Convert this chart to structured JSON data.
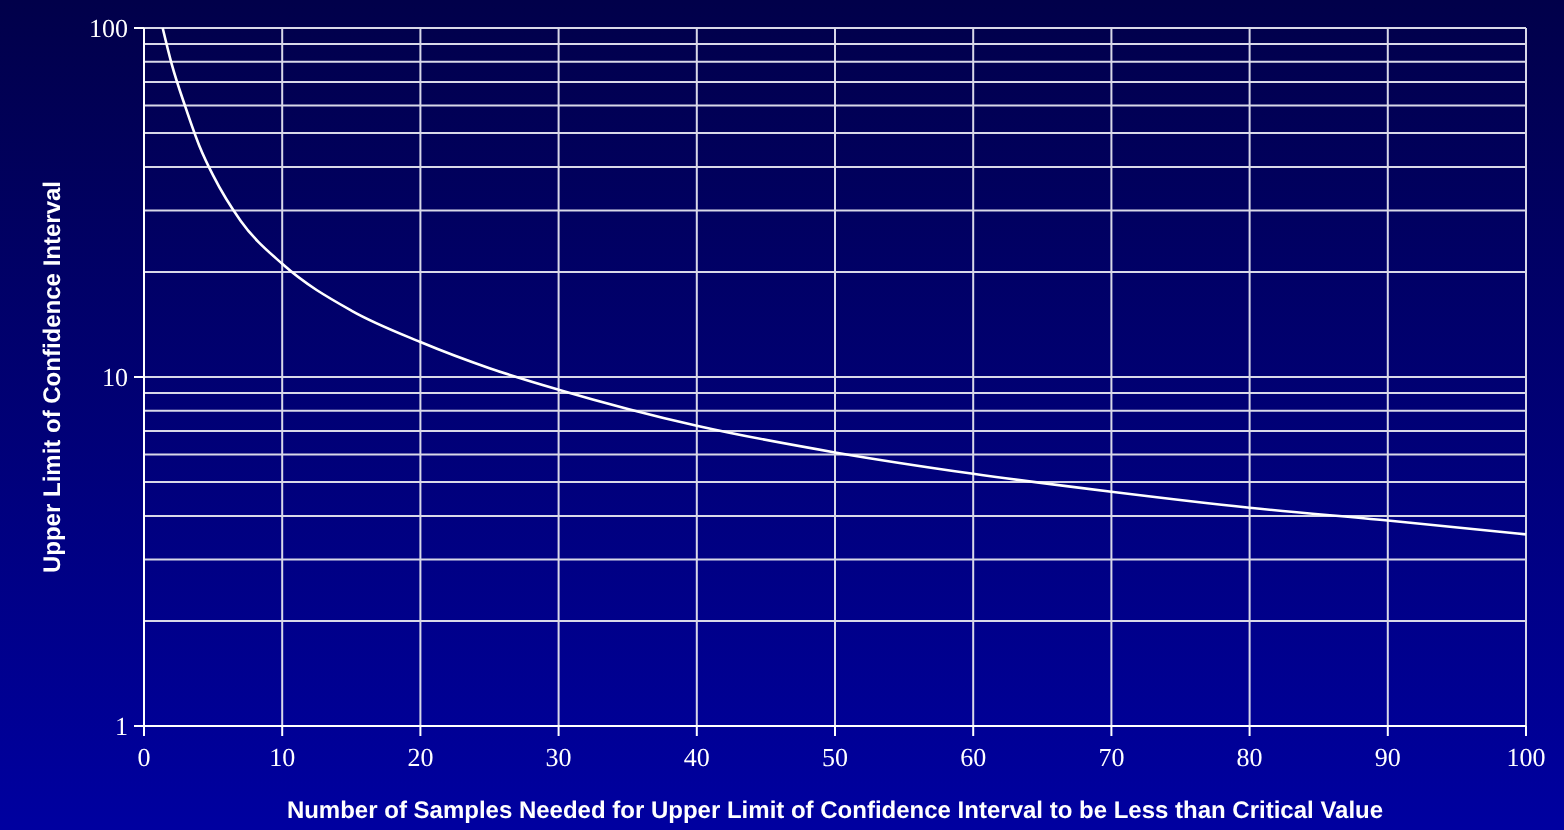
{
  "chart_data": {
    "type": "line",
    "xlabel": "Number of Samples Needed for Upper Limit of Confidence Interval to be Less than Critical Value",
    "ylabel": "Upper Limit of Confidence Interval",
    "series": [
      {
        "color": "#ffffff",
        "x": [
          1.35,
          2,
          3,
          4,
          5,
          7,
          10,
          15,
          20,
          25,
          30,
          40,
          50,
          60,
          70,
          80,
          90,
          100
        ],
        "values": [
          100,
          78.9,
          59.3,
          46,
          37.8,
          28,
          21.1,
          15.5,
          12.6,
          10.6,
          9.2,
          7.25,
          6.08,
          5.28,
          4.69,
          4.22,
          3.88,
          3.54
        ]
      }
    ],
    "xlim": [
      0,
      100
    ],
    "xticks": [
      0,
      10,
      20,
      30,
      40,
      50,
      60,
      70,
      80,
      90,
      100
    ],
    "ylim": [
      1,
      100
    ],
    "yticks": [
      1,
      {
        "value": 2,
        "label": null
      },
      {
        "value": 3,
        "label": null
      },
      {
        "value": 4,
        "label": null
      },
      {
        "value": 5,
        "label": null
      },
      {
        "value": 6,
        "label": null
      },
      {
        "value": 7,
        "label": null
      },
      {
        "value": 8,
        "label": null
      },
      {
        "value": 9,
        "label": null
      },
      10,
      {
        "value": 20,
        "label": null
      },
      {
        "value": 30,
        "label": null
      },
      {
        "value": 40,
        "label": null
      },
      {
        "value": 50,
        "label": null
      },
      {
        "value": 60,
        "label": null
      },
      {
        "value": 70,
        "label": null
      },
      {
        "value": 80,
        "label": null
      },
      {
        "value": 90,
        "label": null
      },
      100
    ],
    "log": "y",
    "grid": true,
    "marker": "none",
    "line_style": "solid"
  }
}
